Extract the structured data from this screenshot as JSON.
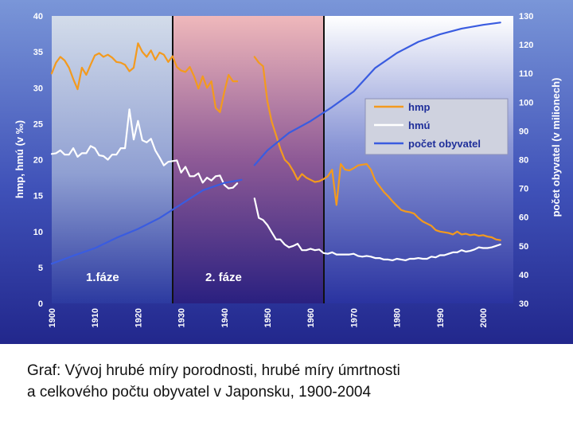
{
  "chart_data": {
    "type": "line",
    "title": "",
    "xlabel": "",
    "ylabel_left": "hmp, hmú (v ‰)",
    "ylabel_right": "počet obyvatel (v milionech)",
    "xlim": [
      1900,
      2007
    ],
    "ylim_left": [
      0,
      40
    ],
    "ylim_right": [
      30,
      130
    ],
    "x_ticks": [
      "1900",
      "1910",
      "1920",
      "1930",
      "1940",
      "1950",
      "1960",
      "1970",
      "1980",
      "1990",
      "2000"
    ],
    "y_left_ticks": [
      "0",
      "5",
      "10",
      "15",
      "20",
      "25",
      "30",
      "35",
      "40"
    ],
    "y_right_ticks": [
      "30",
      "40",
      "50",
      "60",
      "70",
      "80",
      "90",
      "100",
      "110",
      "120",
      "130"
    ],
    "grid": false,
    "legend_position": "right",
    "phases": [
      {
        "label": "1.fáze",
        "x_start": 1900,
        "x_end": 1927,
        "color": "#cfd6e8"
      },
      {
        "label": "2. fáze",
        "x_start": 1927,
        "x_end": 1962,
        "color": "#e8b8bc"
      }
    ],
    "series": [
      {
        "name": "hmp",
        "axis": "left",
        "color": "#f39a1e",
        "segments": [
          [
            [
              1900,
              32
            ],
            [
              1901,
              33.5
            ],
            [
              1902,
              34.3
            ],
            [
              1903,
              33.8
            ],
            [
              1904,
              32.8
            ],
            [
              1905,
              31.2
            ],
            [
              1906,
              29.8
            ],
            [
              1907,
              32.8
            ],
            [
              1908,
              31.8
            ],
            [
              1909,
              33.2
            ],
            [
              1910,
              34.5
            ],
            [
              1911,
              34.8
            ],
            [
              1912,
              34.3
            ],
            [
              1913,
              34.6
            ],
            [
              1914,
              34.2
            ],
            [
              1915,
              33.6
            ],
            [
              1916,
              33.5
            ],
            [
              1917,
              33.2
            ],
            [
              1918,
              32.3
            ],
            [
              1919,
              32.8
            ],
            [
              1920,
              36.2
            ],
            [
              1921,
              35
            ],
            [
              1922,
              34.3
            ],
            [
              1923,
              35.2
            ],
            [
              1924,
              33.9
            ],
            [
              1925,
              34.9
            ],
            [
              1926,
              34.6
            ],
            [
              1927,
              33.6
            ],
            [
              1928,
              34.4
            ],
            [
              1929,
              32.9
            ],
            [
              1930,
              32.4
            ],
            [
              1931,
              32.2
            ],
            [
              1932,
              32.9
            ],
            [
              1933,
              31.6
            ],
            [
              1934,
              29.9
            ],
            [
              1935,
              31.6
            ],
            [
              1936,
              30
            ],
            [
              1937,
              30.9
            ],
            [
              1938,
              27.2
            ],
            [
              1939,
              26.6
            ],
            [
              1940,
              29.4
            ],
            [
              1941,
              31.8
            ],
            [
              1942,
              30.9
            ],
            [
              1943,
              30.9
            ]
          ],
          [
            [
              1947,
              34.3
            ],
            [
              1948,
              33.5
            ],
            [
              1949,
              33
            ],
            [
              1950,
              28.1
            ],
            [
              1951,
              25.3
            ],
            [
              1952,
              23.4
            ],
            [
              1953,
              21.5
            ],
            [
              1954,
              20
            ],
            [
              1955,
              19.4
            ],
            [
              1956,
              18.4
            ],
            [
              1957,
              17.2
            ],
            [
              1958,
              18
            ],
            [
              1959,
              17.5
            ],
            [
              1960,
              17.2
            ],
            [
              1961,
              16.9
            ],
            [
              1962,
              17
            ],
            [
              1963,
              17.3
            ],
            [
              1964,
              17.7
            ],
            [
              1965,
              18.6
            ],
            [
              1966,
              13.7
            ],
            [
              1967,
              19.4
            ],
            [
              1968,
              18.6
            ],
            [
              1969,
              18.5
            ],
            [
              1970,
              18.8
            ],
            [
              1971,
              19.2
            ],
            [
              1972,
              19.3
            ],
            [
              1973,
              19.4
            ],
            [
              1974,
              18.6
            ],
            [
              1975,
              17.1
            ],
            [
              1976,
              16.3
            ],
            [
              1977,
              15.5
            ],
            [
              1978,
              14.9
            ],
            [
              1979,
              14.2
            ],
            [
              1980,
              13.6
            ],
            [
              1981,
              13
            ],
            [
              1982,
              12.8
            ],
            [
              1983,
              12.7
            ],
            [
              1984,
              12.5
            ],
            [
              1985,
              11.9
            ],
            [
              1986,
              11.4
            ],
            [
              1987,
              11.1
            ],
            [
              1988,
              10.8
            ],
            [
              1989,
              10.2
            ],
            [
              1990,
              10
            ],
            [
              1991,
              9.9
            ],
            [
              1992,
              9.8
            ],
            [
              1993,
              9.6
            ],
            [
              1994,
              10
            ],
            [
              1995,
              9.6
            ],
            [
              1996,
              9.7
            ],
            [
              1997,
              9.5
            ],
            [
              1998,
              9.6
            ],
            [
              1999,
              9.4
            ],
            [
              2000,
              9.5
            ],
            [
              2001,
              9.3
            ],
            [
              2002,
              9.2
            ],
            [
              2003,
              8.9
            ],
            [
              2004,
              8.8
            ]
          ]
        ]
      },
      {
        "name": "hmú",
        "axis": "left",
        "color": "#ffffff",
        "segments": [
          [
            [
              1900,
              20.8
            ],
            [
              1901,
              20.9
            ],
            [
              1902,
              21.3
            ],
            [
              1903,
              20.7
            ],
            [
              1904,
              20.7
            ],
            [
              1905,
              21.6
            ],
            [
              1906,
              20.4
            ],
            [
              1907,
              20.9
            ],
            [
              1908,
              20.9
            ],
            [
              1909,
              21.9
            ],
            [
              1910,
              21.6
            ],
            [
              1911,
              20.6
            ],
            [
              1912,
              20.5
            ],
            [
              1913,
              20
            ],
            [
              1914,
              20.7
            ],
            [
              1915,
              20.7
            ],
            [
              1916,
              21.6
            ],
            [
              1917,
              21.6
            ],
            [
              1918,
              27
            ],
            [
              1919,
              22.8
            ],
            [
              1920,
              25.4
            ],
            [
              1921,
              22.7
            ],
            [
              1922,
              22.4
            ],
            [
              1923,
              22.9
            ],
            [
              1924,
              21.3
            ],
            [
              1925,
              20.3
            ],
            [
              1926,
              19.2
            ],
            [
              1927,
              19.7
            ],
            [
              1928,
              19.8
            ],
            [
              1929,
              19.9
            ],
            [
              1930,
              18.2
            ],
            [
              1931,
              19
            ],
            [
              1932,
              17.7
            ],
            [
              1933,
              17.7
            ],
            [
              1934,
              18.1
            ],
            [
              1935,
              16.8
            ],
            [
              1936,
              17.5
            ],
            [
              1937,
              17.1
            ],
            [
              1938,
              17.7
            ],
            [
              1939,
              17.8
            ],
            [
              1940,
              16.5
            ],
            [
              1941,
              16
            ],
            [
              1942,
              16.1
            ],
            [
              1943,
              16.7
            ]
          ],
          [
            [
              1947,
              14.6
            ],
            [
              1948,
              11.9
            ],
            [
              1949,
              11.6
            ],
            [
              1950,
              10.9
            ],
            [
              1951,
              9.9
            ],
            [
              1952,
              8.9
            ],
            [
              1953,
              8.9
            ],
            [
              1954,
              8.2
            ],
            [
              1955,
              7.8
            ],
            [
              1956,
              8
            ],
            [
              1957,
              8.3
            ],
            [
              1958,
              7.4
            ],
            [
              1959,
              7.4
            ],
            [
              1960,
              7.6
            ],
            [
              1961,
              7.4
            ],
            [
              1962,
              7.5
            ],
            [
              1963,
              7
            ],
            [
              1964,
              6.9
            ],
            [
              1965,
              7.1
            ],
            [
              1966,
              6.8
            ],
            [
              1967,
              6.8
            ],
            [
              1968,
              6.8
            ],
            [
              1969,
              6.8
            ],
            [
              1970,
              6.9
            ],
            [
              1971,
              6.6
            ],
            [
              1972,
              6.5
            ],
            [
              1973,
              6.6
            ],
            [
              1974,
              6.5
            ],
            [
              1975,
              6.3
            ],
            [
              1976,
              6.3
            ],
            [
              1977,
              6.1
            ],
            [
              1978,
              6.1
            ],
            [
              1979,
              6
            ],
            [
              1980,
              6.2
            ],
            [
              1981,
              6.1
            ],
            [
              1982,
              6
            ],
            [
              1983,
              6.2
            ],
            [
              1984,
              6.2
            ],
            [
              1985,
              6.3
            ],
            [
              1986,
              6.2
            ],
            [
              1987,
              6.2
            ],
            [
              1988,
              6.5
            ],
            [
              1989,
              6.4
            ],
            [
              1990,
              6.7
            ],
            [
              1991,
              6.7
            ],
            [
              1992,
              6.9
            ],
            [
              1993,
              7.1
            ],
            [
              1994,
              7.1
            ],
            [
              1995,
              7.4
            ],
            [
              1996,
              7.2
            ],
            [
              1997,
              7.3
            ],
            [
              1998,
              7.5
            ],
            [
              1999,
              7.8
            ],
            [
              2000,
              7.7
            ],
            [
              2001,
              7.7
            ],
            [
              2002,
              7.8
            ],
            [
              2003,
              8
            ],
            [
              2004,
              8.2
            ]
          ]
        ]
      },
      {
        "name": "počet obyvatel",
        "axis": "right",
        "color": "#3a5ce0",
        "segments": [
          [
            [
              1900,
              43.8
            ],
            [
              1905,
              46.6
            ],
            [
              1910,
              49.2
            ],
            [
              1915,
              52.8
            ],
            [
              1920,
              55.9
            ],
            [
              1925,
              59.7
            ],
            [
              1930,
              64.5
            ],
            [
              1935,
              69.3
            ],
            [
              1940,
              71.9
            ],
            [
              1944,
              73
            ]
          ],
          [
            [
              1947,
              78.1
            ],
            [
              1950,
              83.2
            ],
            [
              1955,
              89.3
            ],
            [
              1960,
              93.4
            ],
            [
              1965,
              98.3
            ],
            [
              1970,
              103.7
            ],
            [
              1975,
              111.9
            ],
            [
              1980,
              117.1
            ],
            [
              1985,
              121
            ],
            [
              1990,
              123.6
            ],
            [
              1995,
              125.6
            ],
            [
              2000,
              126.9
            ],
            [
              2004,
              127.7
            ]
          ]
        ]
      }
    ]
  },
  "caption": {
    "line1": "Graf: Vývoj hrubé míry porodnosti, hrubé míry úmrtnosti",
    "line2": "a celkového počtu obyvatel v Japonsku, 1900-2004"
  }
}
